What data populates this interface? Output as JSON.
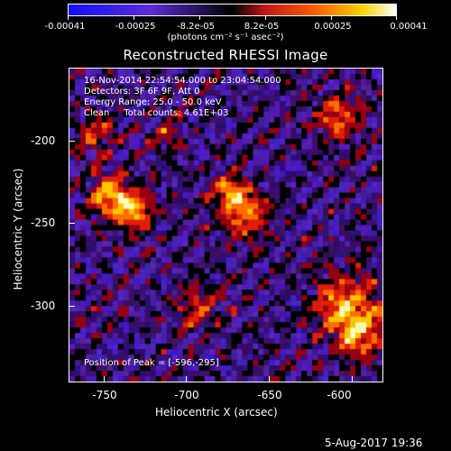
{
  "colorbar": {
    "labels": [
      "-0.00041",
      "-0.00025",
      "-8.2e-05",
      "8.2e-05",
      "0.00025",
      "0.00041"
    ],
    "unit_text": "(photons cm⁻² s⁻¹ asec⁻²)"
  },
  "title": "Reconstructed RHESSI Image",
  "overlay": {
    "line1": "16-Nov-2014 22:54:54.000 to 23:04:54.000",
    "line2": "Detectors: 3F 6F 9F, Att 0",
    "line3": "Energy Range: 25.0 - 50.0 keV",
    "line4": "Clean     Total counts: 4.61E+03",
    "peak": "Position of Peak = [-596,-295]"
  },
  "axes": {
    "xlabel": "Heliocentric X (arcsec)",
    "ylabel": "Heliocentric Y (arcsec)",
    "xticks": [
      "-750",
      "-700",
      "-650",
      "-600"
    ],
    "yticks": [
      "-200",
      "-250",
      "-300"
    ]
  },
  "footer": "5-Aug-2017 19:36",
  "colors": {
    "background": "#000000",
    "foreground": "#ffffff"
  }
}
